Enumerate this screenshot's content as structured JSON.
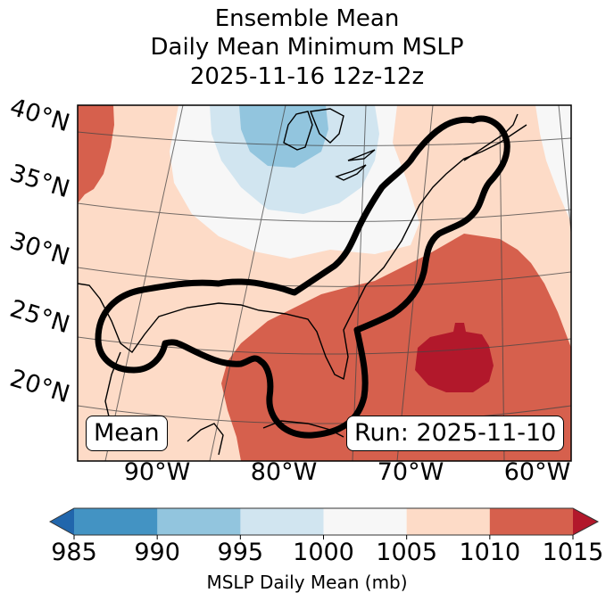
{
  "chart_data": {
    "type": "heatmap",
    "title": [
      "Ensemble Mean",
      "Daily Mean Minimum MSLP",
      "2025-11-16 12z-12z"
    ],
    "projection": "Lambert conformal",
    "lat_ticks": [
      "40°N",
      "35°N",
      "30°N",
      "25°N",
      "20°N"
    ],
    "lon_ticks": [
      "90°W",
      "80°W",
      "70°W",
      "60°W"
    ],
    "colorbar": {
      "label": "MSLP Daily Mean (mb)",
      "levels": [
        985,
        990,
        995,
        1000,
        1005,
        1010,
        1015
      ],
      "tick_labels": [
        "985",
        "990",
        "995",
        "1000",
        "1005",
        "1010",
        "1015"
      ],
      "extend": "both",
      "colors": [
        "#4393c3",
        "#92c5de",
        "#d1e5f0",
        "#f7f7f7",
        "#fddbc7",
        "#d6604d"
      ],
      "under_color": "#2166ac",
      "over_color": "#b2182b"
    },
    "regions": [
      {
        "name": "low-990-995",
        "range_mb": "990-995",
        "location": "Great Lakes"
      },
      {
        "name": "low-995-1000",
        "range_mb": "995-1000",
        "location": "Great Lakes / Ohio Valley"
      },
      {
        "name": "neutral-1000-1005",
        "range_mb": "1000-1005",
        "location": "Midwest to Northeast"
      },
      {
        "name": "high-1010-1015",
        "range_mb": "1010-1015",
        "location": "Western Atlantic / Florida / Caribbean"
      },
      {
        "name": "high-over-1015",
        "range_mb": ">1015",
        "location": "Central Atlantic near 25°N 65°W"
      }
    ],
    "contour": {
      "description": "Bold outline spanning Gulf of Mexico to Nova Scotia"
    },
    "annotations": {
      "left": "Mean",
      "right": "Run: 2025-11-10"
    }
  }
}
